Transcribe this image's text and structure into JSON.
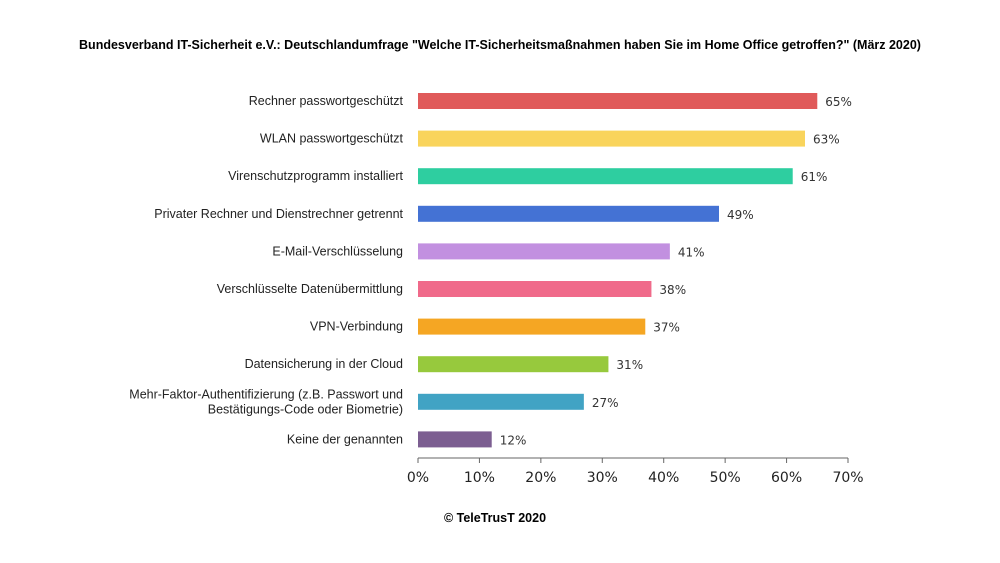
{
  "title": "Bundesverband IT-Sicherheit e.V.: Deutschlandumfrage \"Welche IT-Sicherheitsmaßnahmen haben Sie im Home Office getroffen?\" (März 2020)",
  "credit": "© TeleTrusT 2020",
  "chart_data": {
    "type": "bar",
    "orientation": "horizontal",
    "title": "Bundesverband IT-Sicherheit e.V.: Deutschlandumfrage \"Welche IT-Sicherheitsmaßnahmen haben Sie im Home Office getroffen?\" (März 2020)",
    "categories": [
      [
        "Rechner passwortgeschützt"
      ],
      [
        "WLAN passwortgeschützt"
      ],
      [
        "Virenschutzprogramm installiert"
      ],
      [
        "Privater Rechner und Dienstrechner getrennt"
      ],
      [
        "E-Mail-Verschlüsselung"
      ],
      [
        "Verschlüsselte Datenübermittlung"
      ],
      [
        "VPN-Verbindung"
      ],
      [
        "Datensicherung in der Cloud"
      ],
      [
        "Mehr-Faktor-Authentifizierung (z.B. Passwort und",
        "Bestätigungs-Code oder Biometrie)"
      ],
      [
        "Keine der genannten"
      ]
    ],
    "values": [
      65,
      63,
      61,
      49,
      41,
      38,
      37,
      31,
      27,
      12
    ],
    "value_labels": [
      "65%",
      "63%",
      "61%",
      "49%",
      "41%",
      "38%",
      "37%",
      "31%",
      "27%",
      "12%"
    ],
    "colors": [
      "#e05a5a",
      "#f9d45c",
      "#2ecea0",
      "#4472d4",
      "#c290e0",
      "#f06a8a",
      "#f5a623",
      "#97c93d",
      "#41a3c4",
      "#7c5e91"
    ],
    "xlim": [
      0,
      70
    ],
    "xticks": [
      0,
      10,
      20,
      30,
      40,
      50,
      60,
      70
    ],
    "xtick_labels": [
      "0%",
      "10%",
      "20%",
      "30%",
      "40%",
      "50%",
      "60%",
      "70%"
    ],
    "xlabel": "",
    "ylabel": "",
    "grid": false,
    "legend": "none"
  }
}
